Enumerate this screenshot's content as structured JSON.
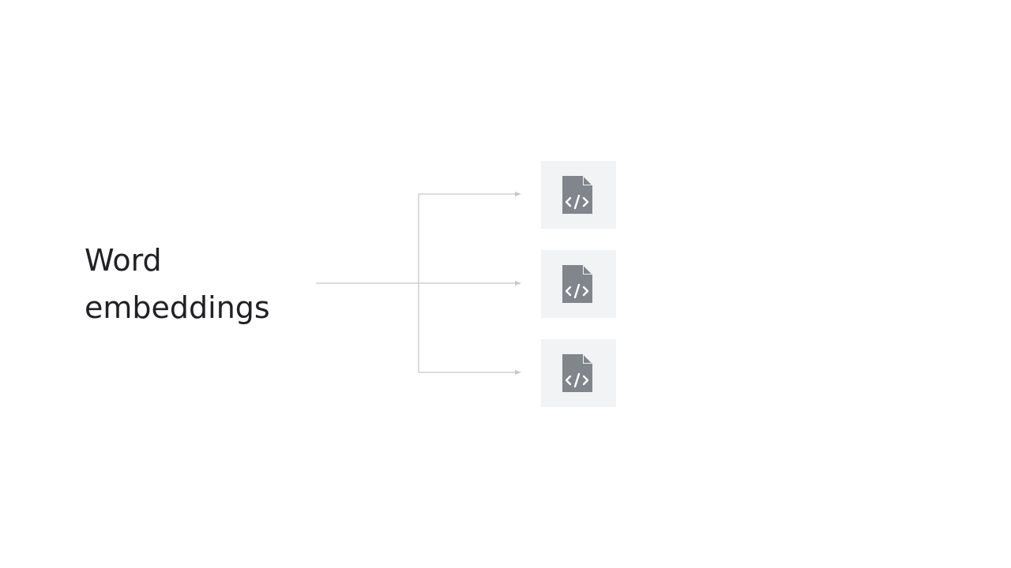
{
  "diagram": {
    "title_lines": [
      "Word",
      "embeddings"
    ],
    "outputs": [
      {
        "icon": "code-file-icon"
      },
      {
        "icon": "code-file-icon"
      },
      {
        "icon": "code-file-icon"
      }
    ],
    "colors": {
      "text": "#202124",
      "connector": "#c8c8c8",
      "tile_background": "#f1f3f4",
      "icon": "#80868b"
    }
  }
}
